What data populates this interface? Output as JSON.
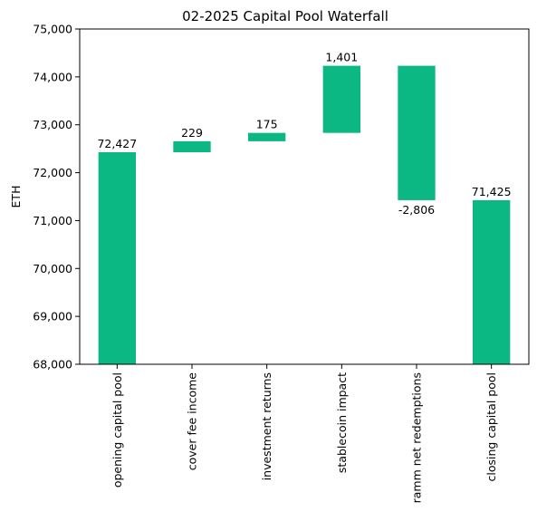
{
  "chart_data": {
    "type": "bar",
    "subtype": "waterfall",
    "title": "02-2025 Capital Pool Waterfall",
    "xlabel": "",
    "ylabel": "ETH",
    "ylim": [
      68000,
      75000
    ],
    "yticks": [
      68000,
      69000,
      70000,
      71000,
      72000,
      73000,
      74000,
      75000
    ],
    "ytick_labels": [
      "68,000",
      "69,000",
      "70,000",
      "71,000",
      "72,000",
      "73,000",
      "74,000",
      "75,000"
    ],
    "categories": [
      "opening capital pool",
      "cover fee income",
      "investment returns",
      "stablecoin impact",
      "ramm net redemptions",
      "closing capital pool"
    ],
    "values": [
      72427,
      229,
      175,
      1401,
      -2806,
      71425
    ],
    "bar_bottoms": [
      68000,
      72427,
      72656,
      72831,
      74232,
      68000
    ],
    "bar_tops": [
      72427,
      72656,
      72831,
      74232,
      71426,
      71425
    ],
    "data_labels": [
      "72,427",
      "229",
      "175",
      "1,401",
      "-2,806",
      "71,425"
    ],
    "bar_color": "#0bb783",
    "grid": false,
    "legend": "none"
  }
}
